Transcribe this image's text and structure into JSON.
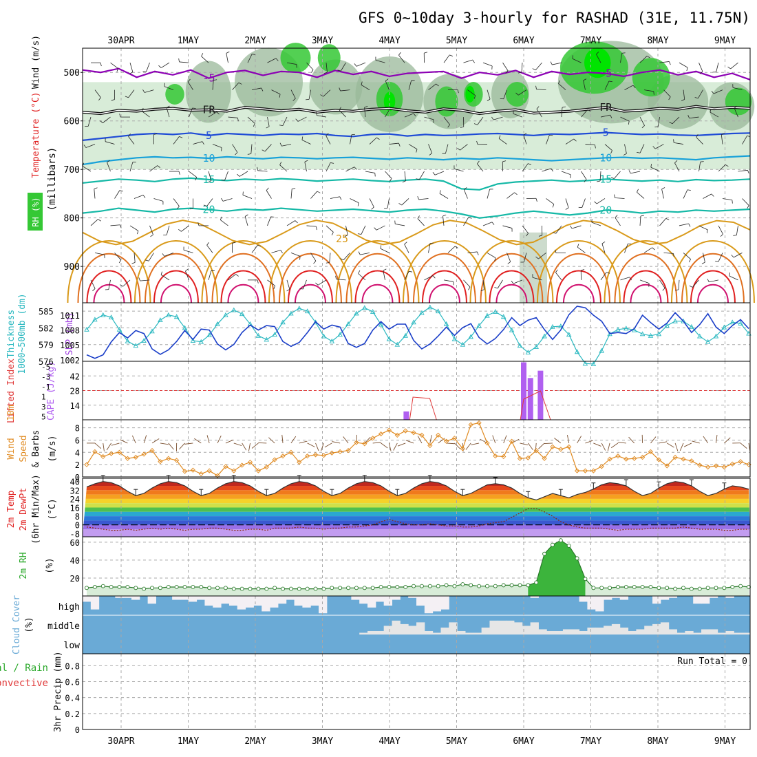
{
  "title": "GFS 0~10day 3-hourly for RASHAD (31E, 11.75N)",
  "dates": [
    "30APR",
    "1MAY",
    "2MAY",
    "3MAY",
    "4MAY",
    "5MAY",
    "6MAY",
    "7MAY",
    "8MAY",
    "9MAY"
  ],
  "colors": {
    "grid": "#a8a8a8",
    "rh_light": "#d8ecd8",
    "rh_mid": "#9ab89a",
    "rh_green": "#35c835",
    "rh_bright": "#00e400",
    "purple": "#8c00b4",
    "blue": "#1f4bd6",
    "cyan": "#17a1d9",
    "teal": "#14b8a6",
    "gold": "#d99a1a",
    "orange": "#e07020",
    "red": "#e02020",
    "magenta": "#d0106e",
    "slp": "#1a3ec8",
    "thickness": "#2ab8c0",
    "cape": "#b060f0",
    "lifted": "#e03a3a",
    "wind": "#e08a20",
    "cloud": "#6aaad6",
    "cloud_bg": "#f4f0f4"
  },
  "chart_data": [
    {
      "type": "heatmap",
      "panel": "upper-air",
      "ylabel": "(millibars)",
      "ylabel_left": "RH (%)",
      "ylabel_mid": "Temperature (°C)",
      "ylabel_right": "Wind (m/s)",
      "y_ticks": [
        500,
        600,
        700,
        800,
        900
      ],
      "ylim": [
        450,
        975
      ],
      "isotherms": [
        {
          "value": -5,
          "label": "-5",
          "label2": "-5",
          "color": "purple",
          "levels": [
            495,
            500,
            492,
            510,
            498,
            505,
            495,
            512,
            500,
            496,
            506,
            498,
            500,
            510,
            496,
            504,
            498,
            508,
            502,
            500,
            498,
            512,
            500,
            505,
            496,
            510,
            498,
            504,
            500,
            502,
            508,
            500,
            495,
            505,
            498,
            510,
            502,
            515
          ]
        },
        {
          "value": 0,
          "label": "FR",
          "label2": "FR",
          "color": "black",
          "levels": [
            582,
            585,
            578,
            580,
            576,
            574,
            578,
            577,
            580,
            572,
            575,
            579,
            576,
            582,
            578,
            580,
            576,
            574,
            579,
            582,
            575,
            578,
            585,
            580,
            577,
            584,
            582,
            580,
            576,
            572,
            580,
            578,
            574,
            576,
            570,
            575,
            572,
            574
          ]
        },
        {
          "value": 5,
          "label": "5",
          "label2": "5",
          "color": "blue",
          "levels": [
            640,
            636,
            632,
            628,
            626,
            628,
            625,
            630,
            626,
            628,
            630,
            627,
            628,
            626,
            630,
            632,
            628,
            627,
            631,
            628,
            630,
            629,
            627,
            626,
            628,
            630,
            627,
            628,
            626,
            624,
            626,
            628,
            627,
            629,
            630,
            628,
            626,
            625
          ]
        },
        {
          "value": 10,
          "label": "10",
          "label2": "10",
          "color": "cyan",
          "levels": [
            690,
            684,
            680,
            676,
            674,
            676,
            675,
            677,
            674,
            676,
            678,
            675,
            676,
            678,
            676,
            675,
            677,
            679,
            676,
            678,
            680,
            677,
            679,
            676,
            678,
            680,
            682,
            680,
            678,
            676,
            675,
            677,
            676,
            678,
            680,
            676,
            674,
            672
          ]
        },
        {
          "value": 15,
          "label": "15",
          "label2": "15",
          "color": "teal",
          "levels": [
            728,
            724,
            720,
            722,
            725,
            720,
            718,
            721,
            723,
            720,
            722,
            719,
            721,
            724,
            722,
            720,
            723,
            725,
            722,
            720,
            724,
            740,
            742,
            730,
            726,
            724,
            722,
            725,
            723,
            720,
            722,
            724,
            722,
            725,
            721,
            723,
            722,
            720
          ]
        },
        {
          "value": 20,
          "label": "20",
          "label2": "20",
          "color": "teal",
          "levels": [
            790,
            786,
            780,
            784,
            788,
            782,
            780,
            783,
            786,
            782,
            784,
            780,
            783,
            786,
            784,
            782,
            785,
            788,
            784,
            782,
            786,
            792,
            800,
            796,
            790,
            786,
            790,
            794,
            790,
            784,
            786,
            790,
            786,
            788,
            784,
            786,
            784,
            782
          ]
        }
      ],
      "winds": []
    },
    {
      "type": "line",
      "panel": "thickness-slp",
      "ylabel_left": "Thickness 1000~500mb (dm)",
      "ylabel_right": "SLP (mb)",
      "y_ticks_left": [
        576,
        579,
        582,
        585
      ],
      "y_ticks_right": [
        1002,
        1005,
        1008,
        1011
      ],
      "thickness": [
        581.7,
        583.5,
        584.3,
        583.9,
        581.7,
        579.6,
        578.8,
        579.7,
        581.4,
        583.4,
        584.3,
        584.0,
        582.0,
        579.7,
        579.5,
        580.7,
        582.7,
        584.3,
        585.2,
        584.5,
        582.7,
        580.6,
        579.9,
        580.8,
        583.0,
        584.6,
        585.5,
        585.0,
        583.0,
        580.5,
        579.6,
        580.8,
        582.7,
        584.6,
        585.6,
        584.9,
        582.6,
        580.0,
        579.0,
        580.6,
        583.0,
        584.7,
        585.7,
        585.0,
        582.7,
        580.0,
        579.0,
        580.4,
        582.4,
        584.2,
        584.9,
        584.0,
        581.6,
        578.8,
        577.6,
        578.6,
        580.5,
        582.2,
        582.3,
        580.8,
        577.7,
        575.6,
        575.5,
        577.9,
        580.9,
        581.7,
        581.9,
        581.6,
        580.9,
        580.6,
        580.9,
        582.4,
        583.2,
        583.2,
        582.2,
        580.5,
        579.5,
        580.5,
        582.1,
        583.0,
        582.8,
        581.0
      ],
      "slp": [
        1003.0,
        1002.3,
        1003.0,
        1005.6,
        1007.5,
        1006.4,
        1007.9,
        1007.3,
        1004.2,
        1003.1,
        1004.0,
        1005.7,
        1007.9,
        1006.1,
        1008.2,
        1008.0,
        1005.2,
        1004.0,
        1005.1,
        1007.5,
        1009.0,
        1008.0,
        1008.9,
        1008.7,
        1005.7,
        1004.7,
        1005.5,
        1007.5,
        1009.7,
        1008.2,
        1009.0,
        1008.6,
        1005.3,
        1004.5,
        1005.3,
        1008.0,
        1009.7,
        1008.2,
        1009.2,
        1009.2,
        1005.9,
        1004.2,
        1005.2,
        1006.8,
        1008.6,
        1006.9,
        1008.5,
        1009.3,
        1006.5,
        1005.2,
        1006.3,
        1008.1,
        1010.5,
        1008.9,
        1010.0,
        1010.5,
        1008.1,
        1006.1,
        1008.0,
        1011.1,
        1012.8,
        1012.5,
        1011.0,
        1009.8,
        1007.3,
        1007.5,
        1007.3,
        1008.3,
        1011.0,
        1009.5,
        1008.2,
        1009.4,
        1011.5,
        1009.8,
        1007.5,
        1009.1,
        1011.3,
        1008.6,
        1007.3,
        1008.9,
        1010.1,
        1008.3
      ]
    },
    {
      "type": "bar",
      "panel": "cape-li",
      "ylabel_left": "Lifted Index",
      "ylabel_right": "CAPE (J/kg)",
      "y_ticks_left": [
        "-5",
        "-3",
        "-1",
        "1",
        "3",
        "5"
      ],
      "y_ticks_right": [
        14,
        28,
        42
      ],
      "cape_bars": [
        {
          "x": 4.25,
          "v": 8
        },
        {
          "x": 6.0,
          "v": 55
        },
        {
          "x": 6.1,
          "v": 40
        },
        {
          "x": 6.25,
          "v": 47
        }
      ],
      "lifted_index": [
        {
          "x": 4.3,
          "v": 2.6
        },
        {
          "x": 4.5,
          "v": 2.4
        },
        {
          "x": 4.6,
          "v": 2.8
        },
        {
          "x": 6.0,
          "v": 2.0
        },
        {
          "x": 6.1,
          "v": 1.5
        },
        {
          "x": 6.2,
          "v": 1.2
        },
        {
          "x": 6.35,
          "v": 1.0
        }
      ]
    },
    {
      "type": "line",
      "panel": "10m-wind",
      "ylabel": "10m Wind Speed & Barbs (m/s)",
      "y_ticks": [
        0,
        2,
        4,
        6,
        8
      ],
      "speed": [
        2.0,
        4.1,
        3.3,
        3.8,
        4.0,
        3.0,
        3.2,
        3.7,
        4.3,
        2.5,
        3.0,
        2.7,
        0.9,
        1.1,
        0.5,
        1.0,
        0.2,
        1.7,
        1.0,
        1.9,
        2.4,
        1.0,
        1.6,
        2.8,
        3.4,
        4.0,
        2.4,
        3.4,
        3.6,
        3.5,
        3.9,
        4.1,
        4.3,
        5.6,
        5.4,
        6.3,
        7.0,
        7.6,
        6.8,
        7.5,
        7.2,
        6.8,
        5.1,
        6.8,
        5.8,
        6.3,
        4.6,
        8.5,
        8.8,
        5.5,
        3.4,
        3.3,
        5.8,
        3.0,
        3.1,
        4.3,
        3.0,
        4.9,
        4.5,
        4.9,
        1.0,
        1.0,
        1.0,
        1.7,
        2.9,
        3.4,
        2.9,
        3.0,
        3.2,
        4.1,
        2.8,
        1.8,
        3.2,
        2.9,
        2.6,
        1.9,
        1.6,
        1.8,
        1.6,
        2.1,
        2.5,
        2.0
      ],
      "barbs": []
    },
    {
      "type": "area",
      "panel": "2m-temp",
      "ylabel": "2m Temp 2m DewPt (6hr Min/Max) (°C)",
      "y_ticks": [
        -8,
        0,
        8,
        16,
        24,
        32,
        40
      ],
      "temp": [
        35,
        38,
        40,
        39,
        36,
        31,
        27,
        29,
        34,
        38,
        40,
        39,
        36,
        31,
        27,
        29,
        34,
        38,
        40,
        39,
        36,
        31,
        27,
        29,
        34,
        38,
        40,
        39,
        36,
        31,
        27,
        29,
        34,
        38,
        40,
        39,
        36,
        31,
        27,
        29,
        34,
        38,
        40,
        39,
        36,
        31,
        27,
        29,
        33,
        37,
        38,
        37,
        34,
        29,
        25,
        23,
        26,
        29,
        27,
        25,
        28,
        30,
        33,
        37,
        39,
        38,
        36,
        31,
        27,
        29,
        34,
        38,
        40,
        39,
        36,
        31,
        27,
        29,
        33,
        36,
        35,
        33
      ],
      "dewpt": [
        -2,
        -3,
        -4,
        -5,
        -5,
        -4,
        -5,
        -4,
        -3,
        -4,
        -3,
        -4,
        -5,
        -4,
        -4,
        -3,
        -3,
        -4,
        -5,
        -5,
        -4,
        -4,
        -5,
        -3,
        -3,
        -3,
        -2,
        -3,
        -3,
        -4,
        -3,
        -3,
        -2,
        -2,
        -1,
        0,
        3,
        5,
        3,
        1,
        0,
        0,
        1,
        0,
        -1,
        -1,
        -2,
        -2,
        -1,
        1,
        2,
        3,
        7,
        11,
        15,
        15,
        12,
        8,
        3,
        0,
        -2,
        -3,
        -3,
        -3,
        -4,
        -5,
        -4,
        -4,
        -4,
        -3,
        -3,
        -3,
        -3,
        -2,
        -3,
        -4,
        -4,
        -4,
        -5,
        -5,
        -4,
        -4
      ]
    },
    {
      "type": "area",
      "panel": "2m-rh",
      "ylabel": "2m RH (%)",
      "y_ticks": [
        20,
        40,
        60
      ],
      "rh": [
        9,
        10,
        11,
        10,
        10,
        10,
        9,
        8,
        9,
        9,
        10,
        10,
        10,
        10,
        10,
        9,
        9,
        9,
        8,
        8,
        8,
        8,
        8,
        9,
        8,
        8,
        8,
        8,
        8,
        8,
        9,
        9,
        9,
        9,
        9,
        9,
        10,
        10,
        10,
        10,
        11,
        11,
        11,
        11,
        12,
        11,
        13,
        12,
        11,
        11,
        11,
        12,
        12,
        12,
        12,
        15,
        47,
        57,
        62,
        56,
        42,
        19,
        9,
        9,
        9,
        10,
        10,
        10,
        10,
        10,
        9,
        9,
        8,
        9,
        8,
        8,
        9,
        9,
        9,
        10,
        11,
        10
      ]
    },
    {
      "type": "bar",
      "panel": "cloud-cover",
      "ylabel": "Cloud Cover (%)",
      "levels": [
        "high",
        "middle",
        "low"
      ],
      "high": [
        0.7,
        0.3,
        1.0,
        1.0,
        0.9,
        0.9,
        0.8,
        1.0,
        0.6,
        1.0,
        1.0,
        0.8,
        0.8,
        0.7,
        0.8,
        0.5,
        0.4,
        0.6,
        0.5,
        0.3,
        0.4,
        0.5,
        0.2,
        0.4,
        0.6,
        0.8,
        0.5,
        0.4,
        0.5,
        0.1,
        1.0,
        1.0,
        1.0,
        0.8,
        0.6,
        0.4,
        0.7,
        0.5,
        0.8,
        1.0,
        0.9,
        0.5,
        0.1,
        0.2,
        0.3,
        1.0,
        1.0,
        1.0,
        1.0,
        1.0,
        1.0,
        1.0,
        1.0,
        1.0,
        1.0,
        0.9,
        1.0,
        1.0,
        1.0,
        1.0,
        1.0,
        0.7,
        0.3,
        0.2,
        0.8,
        0.9,
        0.8,
        1.0,
        1.0,
        1.0,
        0.6,
        0.8,
        0.9,
        1.0,
        1.0,
        0.6,
        0.6,
        0.9,
        1.0,
        0.9,
        1.0,
        1.0
      ],
      "middle": [
        0,
        0,
        0,
        0,
        0,
        0,
        0,
        0,
        0,
        0,
        0,
        0,
        0,
        0,
        0,
        0,
        0,
        0,
        0,
        0,
        0,
        0,
        0,
        0,
        0,
        0,
        0,
        0,
        0,
        0,
        0,
        0,
        0,
        0,
        0.1,
        0.2,
        0.2,
        0.5,
        0.8,
        0.6,
        0.5,
        0.7,
        0.2,
        0.1,
        0.4,
        0.7,
        0.2,
        0.1,
        0.1,
        0.4,
        0.8,
        0.8,
        0.8,
        0.7,
        0.5,
        0.7,
        0.3,
        0.2,
        0.2,
        0.3,
        0.3,
        0.2,
        0.4,
        0.4,
        0.5,
        0.6,
        0.4,
        0.2,
        0.3,
        0.5,
        0.6,
        0.7,
        0.3,
        0.1,
        0.2,
        0.1,
        0.3,
        0.3,
        0.1,
        0.2,
        0.1,
        0.1
      ],
      "low": [
        0,
        0,
        0,
        0,
        0,
        0,
        0,
        0,
        0,
        0,
        0,
        0,
        0,
        0,
        0,
        0,
        0,
        0,
        0,
        0,
        0,
        0,
        0,
        0,
        0,
        0,
        0,
        0,
        0,
        0,
        0,
        0,
        0,
        0,
        0,
        0,
        0,
        0,
        0,
        0,
        0,
        0,
        0,
        0,
        0,
        0,
        0,
        0,
        0,
        0,
        0,
        0,
        0,
        0,
        0,
        0,
        0,
        0,
        0,
        0,
        0,
        0,
        0,
        0,
        0,
        0,
        0,
        0,
        0,
        0,
        0,
        0,
        0,
        0,
        0,
        0,
        0,
        0,
        0,
        0,
        0,
        0
      ]
    },
    {
      "type": "bar",
      "panel": "precip",
      "ylabel": "3hr Precip (mm)",
      "legend_1": "Total / Rain",
      "legend_2": "Convective",
      "run_total": "Run Total = 0",
      "y_ticks": [
        0,
        0.2,
        0.4,
        0.6,
        0.8
      ],
      "ylim": [
        0,
        0.95
      ],
      "values": []
    }
  ]
}
